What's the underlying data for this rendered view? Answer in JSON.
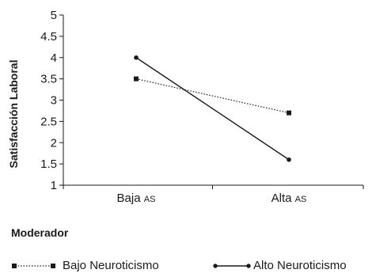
{
  "chart_data": {
    "type": "line",
    "title": "",
    "xlabel": "",
    "ylabel": "Satisfacción Laboral",
    "ylim": [
      1,
      5
    ],
    "yticks": [
      "1",
      "1.5",
      "2",
      "2.5",
      "3",
      "3.5",
      "4",
      "4.5",
      "5"
    ],
    "categories": [
      {
        "main": "Baja",
        "small": "AS"
      },
      {
        "main": "Alta",
        "small": "AS"
      }
    ],
    "series": [
      {
        "name": "Bajo Neuroticismo",
        "values": [
          3.5,
          2.7
        ],
        "style": "dotted",
        "marker": "square",
        "color": "#1a1a1a"
      },
      {
        "name": "Alto Neuroticismo",
        "values": [
          4.0,
          1.6
        ],
        "style": "solid",
        "marker": "circle",
        "color": "#1a1a1a"
      }
    ],
    "grid": false,
    "legend": {
      "title": "Moderador",
      "placement": "bottom"
    }
  }
}
